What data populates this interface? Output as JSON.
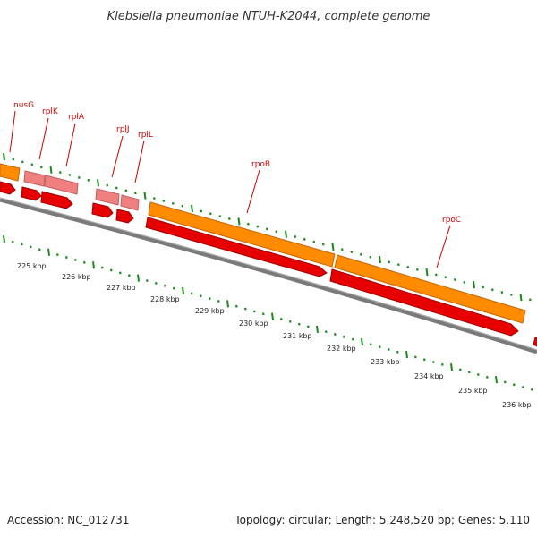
{
  "title": "Klebsiella pneumoniae NTUH-K2044, complete genome",
  "footer": {
    "accession": "Accession: NC_012731",
    "summary": "Topology: circular; Length: 5,248,520 bp; Genes: 5,110"
  },
  "scale": {
    "unit": "kbp",
    "labels": [
      "225 kbp",
      "226 kbp",
      "227 kbp",
      "228 kbp",
      "229 kbp",
      "230 kbp",
      "231 kbp",
      "232 kbp",
      "233 kbp",
      "234 kbp",
      "235 kbp",
      "236 kbp"
    ]
  },
  "genes": [
    {
      "name": "nusG",
      "kind": "CDS"
    },
    {
      "name": "rplK",
      "kind": "CDS"
    },
    {
      "name": "rplA",
      "kind": "CDS"
    },
    {
      "name": "rplJ",
      "kind": "CDS"
    },
    {
      "name": "rplL",
      "kind": "CDS"
    },
    {
      "name": "rpoB",
      "kind": "CDS"
    },
    {
      "name": "rpoC",
      "kind": "CDS"
    }
  ],
  "colors": {
    "gene_feature": "#ff8c00",
    "ribosomal_feature": "#f08080",
    "cds_arrow": "#e60000",
    "backbone": "#808080",
    "ticks": "#1a8a1a",
    "label": "#cc0000"
  }
}
